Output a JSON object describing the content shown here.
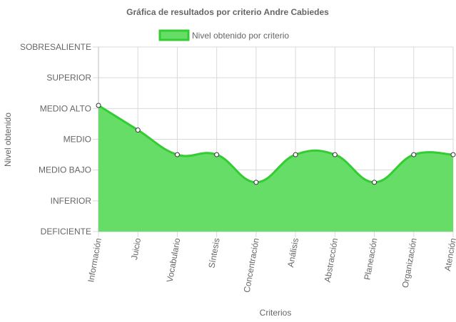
{
  "chart_data": {
    "type": "area",
    "title": "Gráfica de resultados por criterio Andre Cabiedes",
    "xlabel": "Criterios",
    "ylabel": "Nivel obtenido",
    "legend": {
      "position": "top",
      "label": "Nivel obtenido por criterio"
    },
    "y_levels": [
      "DEFICIENTE",
      "INFERIOR",
      "MEDIO BAJO",
      "MEDIO",
      "MEDIO ALTO",
      "SUPERIOR",
      "SOBRESALIENTE"
    ],
    "ylim": [
      0,
      6
    ],
    "grid": true,
    "categories": [
      "Información",
      "Juicio",
      "Vocabulario",
      "Síntesis",
      "Concentración",
      "Análisis",
      "Abstracción",
      "Planeación",
      "Organización",
      "Atención"
    ],
    "series": [
      {
        "name": "Nivel obtenido por criterio",
        "values": [
          4.1,
          3.3,
          2.5,
          2.5,
          1.6,
          2.5,
          2.5,
          1.6,
          2.5,
          2.5
        ],
        "fill_color": "#66dd66",
        "line_color": "#33cc33"
      }
    ]
  }
}
